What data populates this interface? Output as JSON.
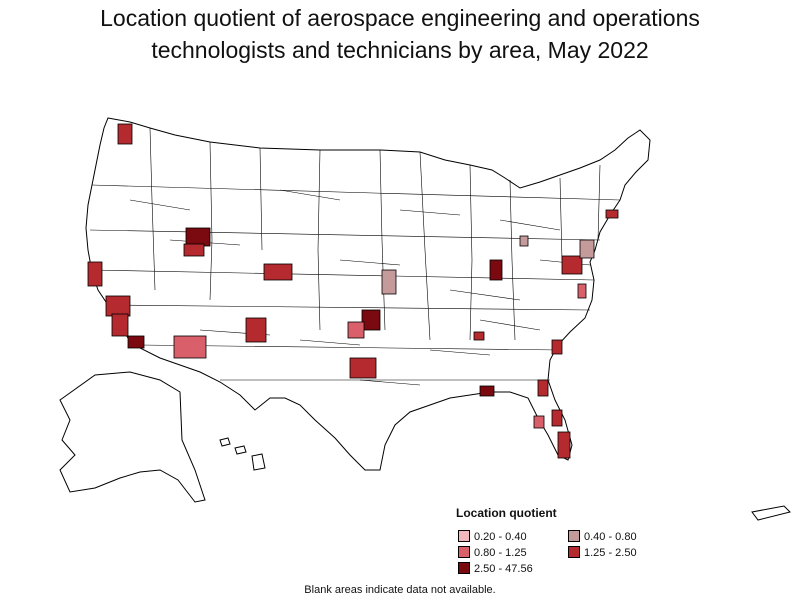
{
  "title_line1": "Location quotient of aerospace engineering and operations",
  "title_line2": "technologists and technicians by area, May 2022",
  "legend": {
    "title": "Location quotient",
    "items": [
      {
        "label": "0.20 - 0.40",
        "color": "#f2b8bd"
      },
      {
        "label": "0.40 - 0.80",
        "color": "#c49a9a"
      },
      {
        "label": "0.80 - 1.25",
        "color": "#d9606a"
      },
      {
        "label": "1.25 - 2.50",
        "color": "#b52a2e"
      },
      {
        "label": "2.50 - 47.56",
        "color": "#7a0a0f"
      }
    ]
  },
  "note": "Blank areas indicate data not available."
}
